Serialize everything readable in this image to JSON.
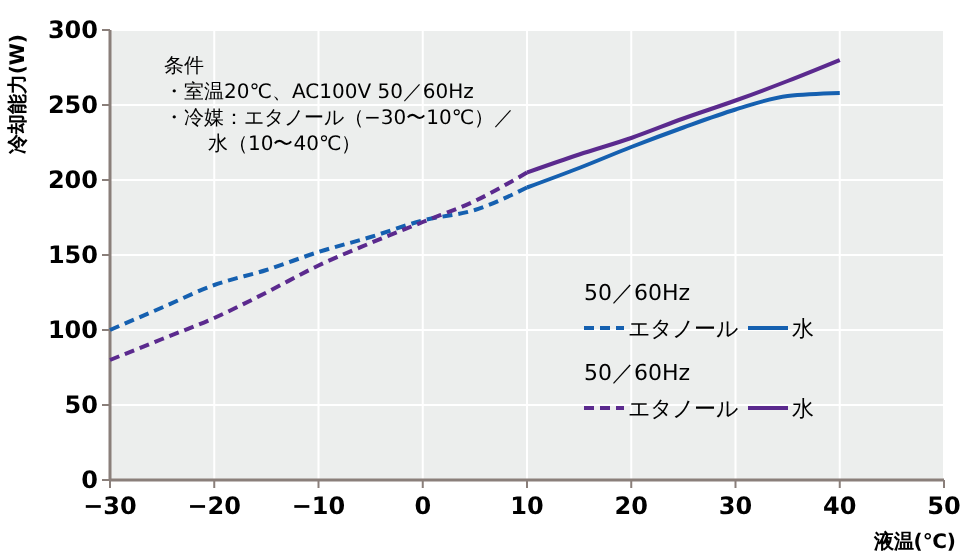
{
  "chart_data": {
    "type": "line",
    "xlabel": "液温(℃)",
    "ylabel": "冷却能力(W)",
    "xlim": [
      -30,
      50
    ],
    "xticks": [
      {
        "value": -30,
        "label": "−30"
      },
      {
        "value": -20,
        "label": "−20"
      },
      {
        "value": -10,
        "label": "−10"
      },
      0,
      10,
      20,
      30,
      40,
      50
    ],
    "ylim": [
      0,
      300
    ],
    "yticks": [
      0,
      50,
      100,
      150,
      200,
      250,
      300
    ],
    "grid": true,
    "legend": "right",
    "annotations": [
      "条件",
      "・室温20℃、AC100V 50／60Hz",
      "・冷媒：エタノール（−30〜10℃）／",
      "水（10〜40℃）",
      "50／60Hz",
      "50／60Hz"
    ],
    "series": [
      {
        "name": "エタノール",
        "color": "#1560b0",
        "line_style": "dashed",
        "x": [
          -30,
          -25,
          -20,
          -15,
          -10,
          -5,
          0,
          5,
          10
        ],
        "values": [
          100,
          115,
          130,
          140,
          152,
          162,
          173,
          180,
          195
        ]
      },
      {
        "name": "水",
        "color": "#1560b0",
        "line_style": "solid",
        "x": [
          10,
          15,
          20,
          25,
          30,
          35,
          40
        ],
        "values": [
          195,
          208,
          222,
          235,
          247,
          256,
          258
        ]
      },
      {
        "name": "エタノール",
        "color": "#5b2a8e",
        "line_style": "dashed",
        "x": [
          -30,
          -25,
          -20,
          -15,
          -10,
          -5,
          0,
          5,
          10
        ],
        "values": [
          80,
          94,
          108,
          125,
          143,
          158,
          172,
          186,
          205
        ]
      },
      {
        "name": "水",
        "color": "#5b2a8e",
        "line_style": "solid",
        "x": [
          10,
          15,
          20,
          25,
          30,
          35,
          40
        ],
        "values": [
          205,
          217,
          228,
          241,
          253,
          266,
          280
        ]
      }
    ]
  }
}
